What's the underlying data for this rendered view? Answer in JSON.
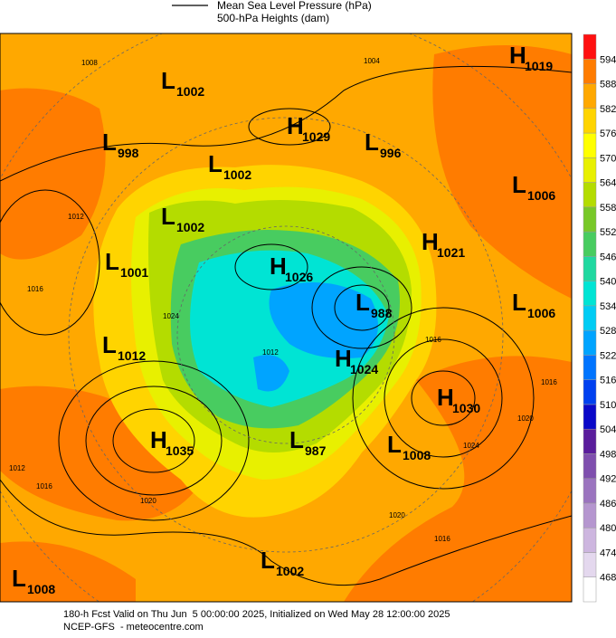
{
  "header": {
    "line1": "Mean Sea Level Pressure (hPa)",
    "line2": "500-hPa Heights (dam)"
  },
  "centers": [
    {
      "letter": "L",
      "value": 1002
    },
    {
      "letter": "H",
      "value": 1019
    },
    {
      "letter": "L",
      "value": 998
    },
    {
      "letter": "H",
      "value": 1029
    },
    {
      "letter": "L",
      "value": 996
    },
    {
      "letter": "L",
      "value": 1002
    },
    {
      "letter": "L",
      "value": 1006
    },
    {
      "letter": "L",
      "value": 1002
    },
    {
      "letter": "H",
      "value": 1021
    },
    {
      "letter": "L",
      "value": 1001
    },
    {
      "letter": "H",
      "value": 1026
    },
    {
      "letter": "L",
      "value": 988
    },
    {
      "letter": "L",
      "value": 1006
    },
    {
      "letter": "L",
      "value": 1012
    },
    {
      "letter": "H",
      "value": 1024
    },
    {
      "letter": "H",
      "value": 1030
    },
    {
      "letter": "H",
      "value": 1035
    },
    {
      "letter": "L",
      "value": 987
    },
    {
      "letter": "L",
      "value": 1008
    },
    {
      "letter": "L",
      "value": 1002
    },
    {
      "letter": "L",
      "value": 1008
    }
  ],
  "contour_labels": [
    1008,
    1004,
    1012,
    1016,
    1024,
    1016,
    1012,
    1016,
    1020,
    1024,
    1020,
    1016,
    1012,
    1020,
    1016
  ],
  "colorbar": {
    "ticks": [
      468,
      474,
      480,
      486,
      492,
      498,
      504,
      510,
      516,
      522,
      528,
      534,
      540,
      546,
      552,
      558,
      564,
      570,
      576,
      582,
      588,
      594
    ],
    "colors": [
      "#ffffff",
      "#e4d8ee",
      "#cdb6df",
      "#b596cf",
      "#9b74bf",
      "#7f4fae",
      "#5a1d9c",
      "#0a08c8",
      "#0040f0",
      "#0074ff",
      "#00a4ff",
      "#00ccf4",
      "#00e4d4",
      "#20d8a0",
      "#48cc60",
      "#78c828",
      "#b4dc00",
      "#e8f000",
      "#ffff00",
      "#ffd400",
      "#ffa800",
      "#ff7c00",
      "#ff1010"
    ]
  },
  "footer": {
    "line1": "180-h Fcst Valid on Thu Jun  5 00:00:00 2025, Initialized on Wed May 28 12:00:00 2025",
    "line2": "NCEP-GFS  - meteocentre.com"
  }
}
